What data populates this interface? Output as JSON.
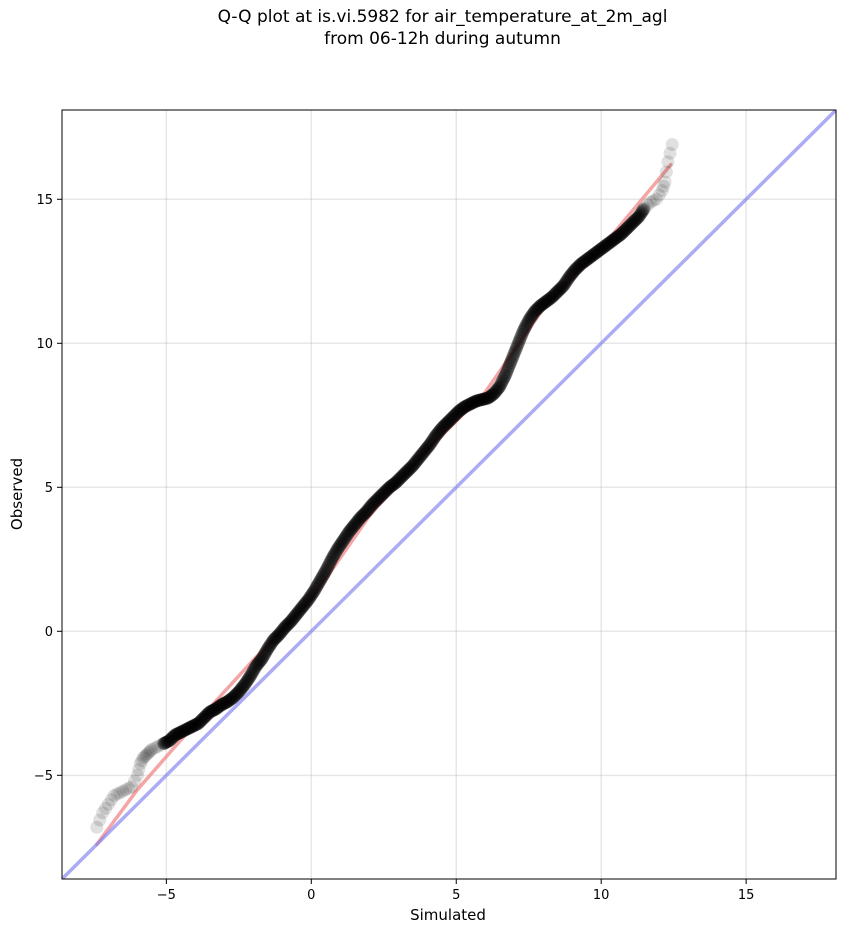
{
  "chart_data": {
    "type": "scatter",
    "title": [
      "Q-Q plot at is.vi.5982 for air_temperature_at_2m_agl",
      "from 06-12h during autumn"
    ],
    "xlabel": "Simulated",
    "ylabel": "Observed",
    "xlim": [
      -8.6,
      18.1
    ],
    "ylim": [
      -8.6,
      18.1
    ],
    "xticks": [
      -5,
      0,
      5,
      10,
      15
    ],
    "yticks": [
      -5,
      0,
      5,
      10,
      15
    ],
    "xtick_labels": [
      "−5",
      "0",
      "5",
      "10",
      "15"
    ],
    "ytick_labels": [
      "−5",
      "0",
      "5",
      "10",
      "15"
    ],
    "grid": true,
    "colors": {
      "points": "#000000",
      "fit_line": "#f08080",
      "identity_line": "#8080f0"
    },
    "series": [
      {
        "kind": "scatter",
        "x": [
          -7.4,
          -7.2,
          -7.0,
          -6.8,
          -6.6,
          -6.4,
          -6.2,
          -6.0,
          -5.9,
          -5.8,
          -5.7,
          -5.6,
          -5.5,
          -5.3,
          -5.1,
          -4.9,
          -4.7,
          -4.5,
          -4.3,
          -4.1,
          -3.9,
          -3.7,
          -3.5,
          -3.3,
          -3.1,
          -2.9,
          -2.7,
          -2.5,
          -2.3,
          -2.1,
          -1.9,
          -1.7,
          -1.5,
          -1.3,
          -1.1,
          -0.9,
          -0.7,
          -0.5,
          -0.3,
          -0.1,
          0.1,
          0.3,
          0.5,
          0.7,
          0.9,
          1.1,
          1.3,
          1.5,
          1.7,
          1.9,
          2.1,
          2.3,
          2.5,
          2.7,
          2.9,
          3.1,
          3.3,
          3.5,
          3.7,
          3.9,
          4.1,
          4.3,
          4.5,
          4.7,
          4.9,
          5.1,
          5.3,
          5.5,
          5.7,
          5.9,
          6.1,
          6.3,
          6.5,
          6.7,
          6.9,
          7.1,
          7.3,
          7.5,
          7.7,
          7.9,
          8.1,
          8.3,
          8.5,
          8.7,
          8.9,
          9.1,
          9.3,
          9.5,
          9.7,
          9.9,
          10.1,
          10.3,
          10.5,
          10.7,
          10.9,
          11.1,
          11.3,
          11.5,
          11.7,
          11.9,
          12.1,
          12.2,
          12.3,
          12.45
        ],
        "y": [
          -6.8,
          -6.3,
          -6.0,
          -5.7,
          -5.6,
          -5.5,
          -5.4,
          -5.0,
          -4.6,
          -4.4,
          -4.3,
          -4.2,
          -4.1,
          -4.0,
          -3.9,
          -3.8,
          -3.6,
          -3.5,
          -3.4,
          -3.3,
          -3.2,
          -3.0,
          -2.8,
          -2.7,
          -2.55,
          -2.45,
          -2.3,
          -2.1,
          -1.85,
          -1.55,
          -1.2,
          -0.95,
          -0.6,
          -0.3,
          -0.1,
          0.15,
          0.35,
          0.6,
          0.85,
          1.1,
          1.4,
          1.75,
          2.1,
          2.5,
          2.85,
          3.15,
          3.45,
          3.7,
          3.95,
          4.15,
          4.4,
          4.6,
          4.8,
          5.0,
          5.15,
          5.35,
          5.55,
          5.75,
          6.0,
          6.25,
          6.5,
          6.8,
          7.05,
          7.25,
          7.45,
          7.65,
          7.8,
          7.9,
          8.0,
          8.05,
          8.1,
          8.25,
          8.5,
          8.9,
          9.4,
          9.9,
          10.4,
          10.8,
          11.1,
          11.3,
          11.45,
          11.6,
          11.8,
          12.0,
          12.3,
          12.55,
          12.75,
          12.9,
          13.05,
          13.2,
          13.35,
          13.5,
          13.65,
          13.8,
          14.0,
          14.2,
          14.4,
          14.7,
          14.9,
          15.0,
          15.3,
          15.6,
          16.3,
          16.9
        ]
      },
      {
        "kind": "line",
        "name": "fit",
        "x": [
          -7.4,
          -6,
          -4,
          -2,
          0,
          2,
          4,
          6,
          8,
          10,
          12.4
        ],
        "y": [
          -7.4,
          -5.5,
          -3.2,
          -1.0,
          1.1,
          4.0,
          6.3,
          8.3,
          11.2,
          13.3,
          16.2
        ]
      },
      {
        "kind": "line",
        "name": "identity",
        "x": [
          -8.6,
          18.1
        ],
        "y": [
          -8.6,
          18.1
        ]
      }
    ]
  }
}
